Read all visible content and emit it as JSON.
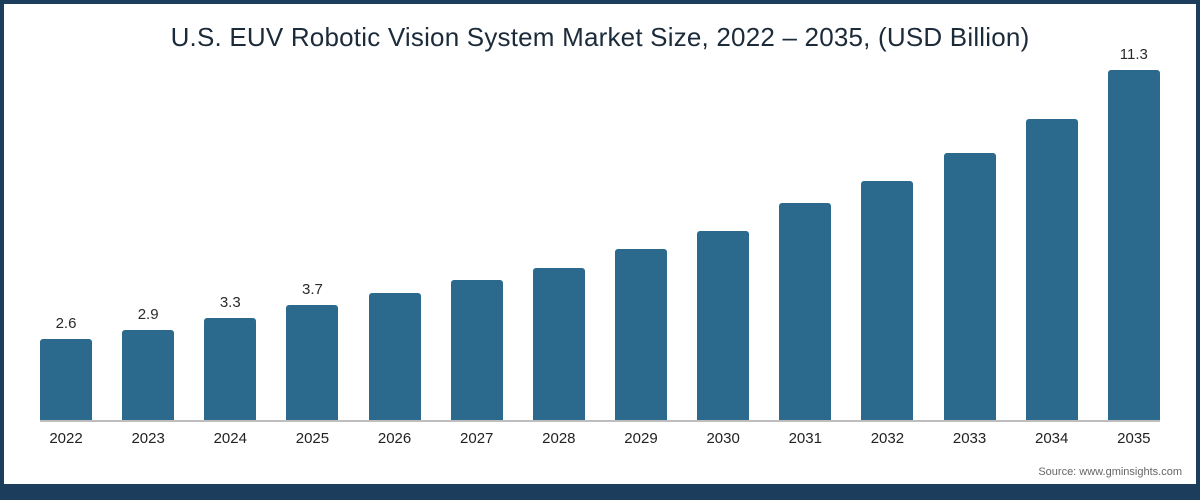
{
  "title": "U.S. EUV Robotic Vision System Market Size, 2022 – 2035, (USD Billion)",
  "source": "Source: www.gminsights.com",
  "colors": {
    "bar": "#2b6a8c",
    "frame": "#1d3d5c",
    "axis": "#bdbdbd",
    "title_text": "#1c2b3a"
  },
  "chart_data": {
    "type": "bar",
    "title": "U.S. EUV Robotic Vision System Market Size, 2022 – 2035, (USD Billion)",
    "categories": [
      "2022",
      "2023",
      "2024",
      "2025",
      "2026",
      "2027",
      "2028",
      "2029",
      "2030",
      "2031",
      "2032",
      "2033",
      "2034",
      "2035"
    ],
    "values": [
      2.6,
      2.9,
      3.3,
      3.7,
      4.1,
      4.5,
      4.9,
      5.5,
      6.1,
      7.0,
      7.7,
      8.6,
      9.7,
      11.3
    ],
    "data_labels": [
      "2.6",
      "2.9",
      "3.3",
      "3.7",
      "",
      "",
      "",
      "",
      "",
      "",
      "",
      "",
      "",
      "11.3"
    ],
    "xlabel": "",
    "ylabel": "",
    "ylim": [
      0,
      12
    ],
    "grid": false,
    "legend": false,
    "legend_position": "none"
  }
}
